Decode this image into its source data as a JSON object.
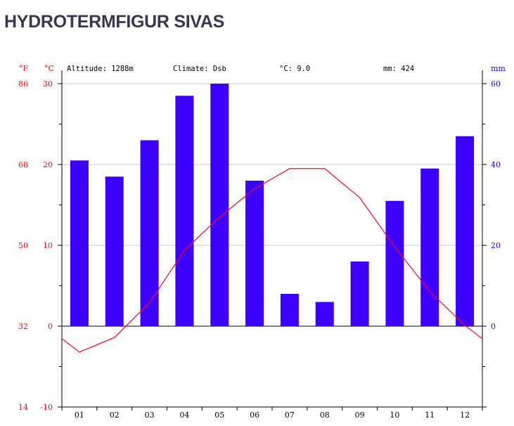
{
  "title": "HYDROTERMFIGUR SIVAS",
  "chart_data": {
    "type": "bar+line",
    "info": {
      "altitude": "Altitude: 1288m",
      "climate": "Climate: Dsb",
      "mean_temp": "°C: 9.0",
      "total_precip": "mm: 424"
    },
    "categories": [
      "01",
      "02",
      "03",
      "04",
      "05",
      "06",
      "07",
      "08",
      "09",
      "10",
      "11",
      "12"
    ],
    "series": [
      {
        "name": "Precipitation",
        "unit": "mm",
        "axis": "right",
        "type": "bar",
        "color": "#3d00ff",
        "values": [
          41,
          37,
          46,
          57,
          60,
          36,
          8,
          6,
          16,
          31,
          39,
          47
        ]
      },
      {
        "name": "Temperature",
        "unit": "°C",
        "axis": "left",
        "type": "line",
        "color": "#ff0022",
        "values": [
          -3.2,
          -1.4,
          2.9,
          9.4,
          13.5,
          17.0,
          19.5,
          19.5,
          15.9,
          9.8,
          4.3,
          0.1
        ]
      }
    ],
    "left_axis": {
      "label_c": "°C",
      "label_f": "°F",
      "range": [
        -10,
        30
      ],
      "ticks_c": [
        "-10",
        "0",
        "10",
        "20",
        "30"
      ],
      "ticks_f": [
        "14",
        "32",
        "50",
        "68",
        "86"
      ],
      "color": "#ff0000"
    },
    "right_axis": {
      "label": "mm",
      "range": [
        0,
        60
      ],
      "ticks": [
        "0",
        "20",
        "40",
        "60"
      ],
      "color": "#2200ff"
    },
    "grid": true
  }
}
